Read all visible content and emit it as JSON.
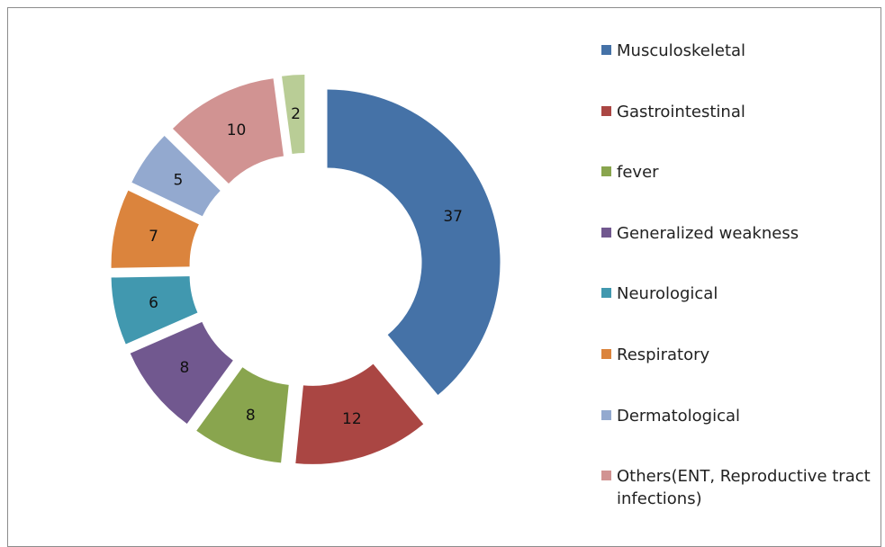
{
  "chart_data": {
    "type": "donut",
    "categories": [
      "Musculoskeletal",
      "Gastrointestinal",
      "fever",
      "Generalized weakness",
      "Neurological",
      "Respiratory",
      "Dermatological",
      "Others(ENT, Reproductive tract infections)",
      null
    ],
    "values": [
      37,
      12,
      8,
      8,
      6,
      7,
      5,
      10,
      2
    ],
    "colors": [
      "#4572a7",
      "#aa4643",
      "#89a54e",
      "#71588f",
      "#4198af",
      "#db843d",
      "#93a9cf",
      "#d19392",
      "#b9cd96"
    ],
    "legend": "right",
    "exploded": true
  }
}
